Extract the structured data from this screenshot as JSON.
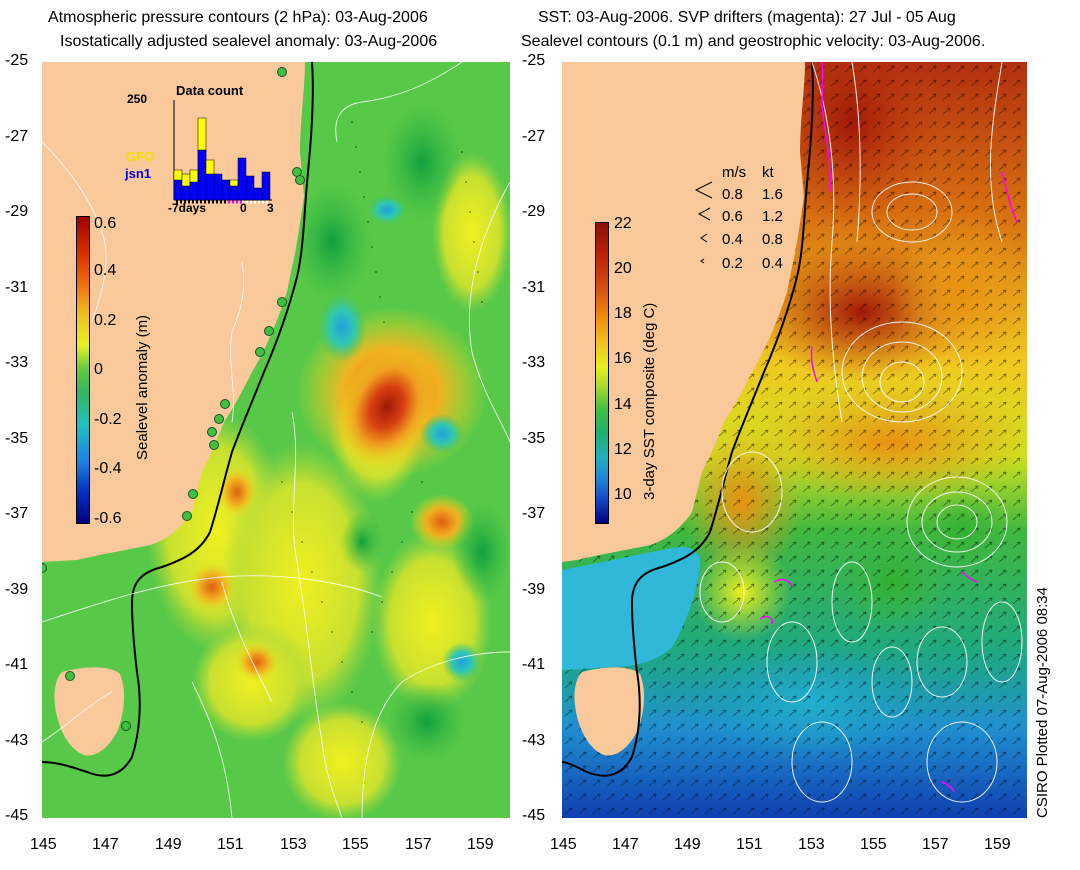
{
  "left_panel": {
    "title_line1": "Atmospheric pressure contours (2 hPa): 03-Aug-2006",
    "title_line2": "Isostatically adjusted sealevel anomaly: 03-Aug-2006",
    "colorbar": {
      "label": "Sealevel anomaly (m)",
      "ticks": [
        "0.6",
        "0.4",
        "0.2",
        "0",
        "-0.2",
        "-0.4",
        "-0.6"
      ],
      "range": [
        -0.6,
        0.6
      ]
    },
    "inset": {
      "title": "Data count",
      "ymax_label": "250",
      "x_ticks": [
        "-7days",
        "0",
        "3"
      ],
      "legend_gfo": "GFO",
      "legend_jsn1": "jsn1",
      "gfo_color": "#ffff00",
      "jsn1_color": "#0000ff"
    }
  },
  "right_panel": {
    "title_line1": "SST: 03-Aug-2006. SVP drifters (magenta): 27 Jul - 05 Aug",
    "title_line2": "Sealevel contours (0.1 m) and geostrophic velocity: 03-Aug-2006.",
    "colorbar": {
      "label": "3-day SST composite (deg C)",
      "ticks": [
        "22",
        "20",
        "18",
        "16",
        "14",
        "12",
        "10"
      ],
      "range": [
        9,
        22
      ]
    },
    "velocity_legend": {
      "header_ms": "m/s",
      "header_kt": "kt",
      "rows": [
        {
          "ms": "0.8",
          "kt": "1.6"
        },
        {
          "ms": "0.6",
          "kt": "1.2"
        },
        {
          "ms": "0.4",
          "kt": "0.8"
        },
        {
          "ms": "0.2",
          "kt": "0.4"
        }
      ]
    }
  },
  "axes": {
    "lat_ticks": [
      "-25",
      "-27",
      "-29",
      "-31",
      "-33",
      "-35",
      "-37",
      "-39",
      "-41",
      "-43",
      "-45"
    ],
    "lon_ticks": [
      "145",
      "147",
      "149",
      "151",
      "153",
      "155",
      "157",
      "159"
    ],
    "lat_range": [
      -45,
      -25
    ],
    "lon_range": [
      145,
      160
    ]
  },
  "footer": {
    "plotted": "CSIRO Plotted 07-Aug-2006 08:34"
  },
  "colors": {
    "land": "#f9c99b",
    "drifter": "#ff00ff"
  }
}
